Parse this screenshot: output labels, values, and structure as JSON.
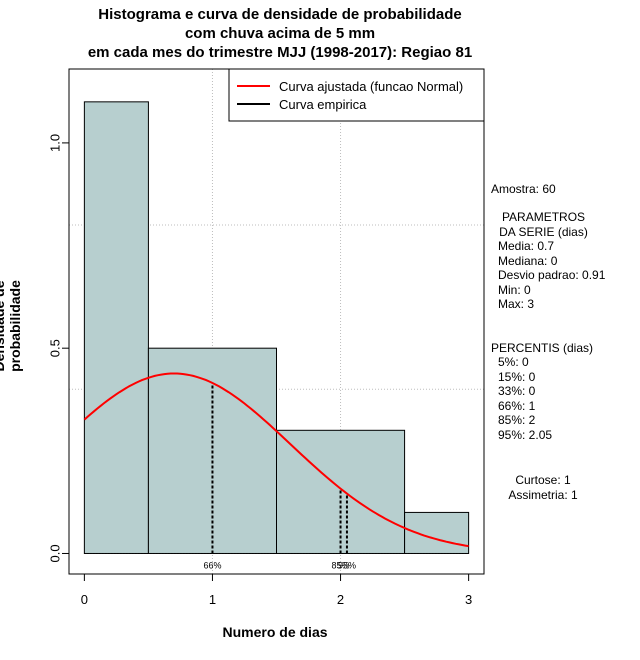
{
  "title_lines": [
    "Histograma e curva de densidade de probabilidade",
    "com chuva acima de 5 mm",
    "em cada mes do trimestre MJJ (1998-2017): Regiao 81"
  ],
  "xlabel": "Numero de dias",
  "ylabel": "Densidade de probabilidade",
  "legend": {
    "fit_label": "Curva ajustada (funcao Normal)",
    "empirical_label": "Curva empirica",
    "fit_color": "#ff0000",
    "empirical_color": "#000000"
  },
  "colors": {
    "bar_fill": "#b7cfcf",
    "grid": "#bebebe"
  },
  "chart_data": {
    "type": "histogram",
    "bins": [
      {
        "x0": -0.5,
        "x1": 0.5,
        "density": 1.1
      },
      {
        "x0": 0.5,
        "x1": 1.5,
        "density": 0.5
      },
      {
        "x0": 1.5,
        "x1": 2.5,
        "density": 0.3
      },
      {
        "x0": 2.5,
        "x1": 3.5,
        "density": 0.1
      }
    ],
    "fit": {
      "distribution": "normal",
      "mean": 0.7,
      "sd": 0.91,
      "x_range": [
        0,
        3
      ]
    },
    "xlim": [
      -0.12,
      3.12
    ],
    "ylim": [
      -0.05,
      1.18
    ],
    "x_ticks": [
      0,
      1,
      2,
      3
    ],
    "x_tick_labels": [
      "0",
      "1",
      "2",
      "3"
    ],
    "y_ticks": [
      0.0,
      0.5,
      1.0
    ],
    "y_tick_labels": [
      "0.0",
      "0.5",
      "1.0"
    ],
    "x_grid": [
      1,
      2
    ],
    "y_grid": [
      0.4,
      0.8
    ],
    "percentile_markers": [
      {
        "x": 1,
        "label": "66%"
      },
      {
        "x": 2,
        "label": "85%"
      },
      {
        "x": 2.05,
        "label": "95%"
      }
    ]
  },
  "stats_panel": {
    "sample": "Amostra: 60",
    "params_title": "PARAMETROS\nDA SERIE (dias)",
    "params": "Media: 0.7\nMediana: 0\nDesvio padrao: 0.91\nMin: 0\nMax: 3",
    "percentiles_title": "PERCENTIS (dias)",
    "percentiles": "5%: 0\n15%: 0\n33%: 0\n66%: 1\n85%: 2\n95%: 2.05",
    "shape": "Curtose: 1\nAssimetria: 1"
  }
}
